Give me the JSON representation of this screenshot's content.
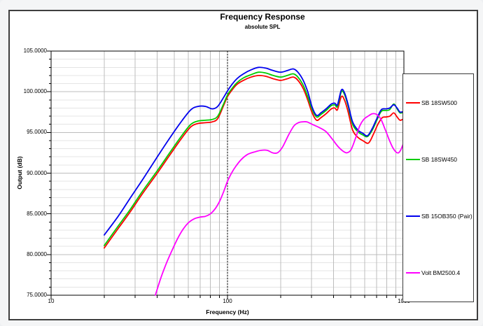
{
  "chart_data": {
    "type": "line",
    "title": "Frequency Response",
    "subtitle": "absolute SPL",
    "xlabel": "Frequency (Hz)",
    "ylabel": "Output (dB)",
    "x_scale": "log",
    "xlim": [
      10,
      1000
    ],
    "ylim": [
      75,
      105
    ],
    "x_ticks": [
      "10",
      "100",
      "1000"
    ],
    "y_ticks": [
      "105.0000",
      "100.0000",
      "95.0000",
      "90.0000",
      "85.0000",
      "80.0000",
      "75.0000"
    ],
    "y_tick_values": [
      105,
      100,
      95,
      90,
      85,
      80,
      75
    ],
    "grid": true,
    "grid_minor_color": "#e4e4e4",
    "grid_major_color": "#bcbcbc",
    "cursor_line_hz": 100,
    "cursor_line_color": "#000000",
    "legend_position": "right",
    "series": [
      {
        "name": "SB 18SW500",
        "color": "#ff0000",
        "points": [
          [
            20,
            80.8
          ],
          [
            24,
            83.2
          ],
          [
            28,
            85.2
          ],
          [
            33,
            87.5
          ],
          [
            40,
            90.0
          ],
          [
            47,
            92.2
          ],
          [
            55,
            94.3
          ],
          [
            62,
            95.7
          ],
          [
            68,
            96.1
          ],
          [
            75,
            96.2
          ],
          [
            82,
            96.3
          ],
          [
            88,
            96.7
          ],
          [
            95,
            98.3
          ],
          [
            100,
            99.4
          ],
          [
            106,
            100.2
          ],
          [
            113,
            100.9
          ],
          [
            123,
            101.4
          ],
          [
            136,
            101.8
          ],
          [
            150,
            102.0
          ],
          [
            165,
            101.9
          ],
          [
            182,
            101.6
          ],
          [
            200,
            101.4
          ],
          [
            218,
            101.6
          ],
          [
            237,
            101.8
          ],
          [
            253,
            101.3
          ],
          [
            270,
            100.3
          ],
          [
            286,
            98.9
          ],
          [
            302,
            97.4
          ],
          [
            320,
            96.5
          ],
          [
            338,
            96.8
          ],
          [
            362,
            97.3
          ],
          [
            388,
            97.9
          ],
          [
            406,
            98.0
          ],
          [
            420,
            97.8
          ],
          [
            442,
            99.4
          ],
          [
            460,
            99.0
          ],
          [
            482,
            97.6
          ],
          [
            512,
            95.3
          ],
          [
            548,
            94.4
          ],
          [
            585,
            94.0
          ],
          [
            630,
            93.7
          ],
          [
            672,
            94.8
          ],
          [
            712,
            96.0
          ],
          [
            752,
            96.8
          ],
          [
            792,
            96.9
          ],
          [
            832,
            97.0
          ],
          [
            876,
            97.4
          ],
          [
            915,
            96.9
          ],
          [
            952,
            96.5
          ],
          [
            1000,
            96.7
          ]
        ]
      },
      {
        "name": "SB 18SW450",
        "color": "#00cc00",
        "points": [
          [
            20,
            81.1
          ],
          [
            24,
            83.5
          ],
          [
            28,
            85.5
          ],
          [
            33,
            87.8
          ],
          [
            40,
            90.3
          ],
          [
            47,
            92.5
          ],
          [
            55,
            94.6
          ],
          [
            62,
            96.0
          ],
          [
            68,
            96.4
          ],
          [
            75,
            96.5
          ],
          [
            82,
            96.6
          ],
          [
            88,
            97.0
          ],
          [
            95,
            98.5
          ],
          [
            100,
            99.6
          ],
          [
            106,
            100.4
          ],
          [
            113,
            101.1
          ],
          [
            123,
            101.7
          ],
          [
            136,
            102.1
          ],
          [
            150,
            102.4
          ],
          [
            165,
            102.3
          ],
          [
            182,
            102.0
          ],
          [
            200,
            101.8
          ],
          [
            218,
            102.0
          ],
          [
            237,
            102.2
          ],
          [
            253,
            101.7
          ],
          [
            270,
            100.7
          ],
          [
            286,
            99.3
          ],
          [
            302,
            97.8
          ],
          [
            320,
            96.9
          ],
          [
            338,
            97.2
          ],
          [
            362,
            97.7
          ],
          [
            388,
            98.3
          ],
          [
            406,
            98.4
          ],
          [
            420,
            98.2
          ],
          [
            442,
            100.0
          ],
          [
            460,
            99.7
          ],
          [
            482,
            98.3
          ],
          [
            512,
            96.0
          ],
          [
            548,
            95.1
          ],
          [
            585,
            94.7
          ],
          [
            622,
            94.5
          ],
          [
            662,
            95.3
          ],
          [
            702,
            96.5
          ],
          [
            745,
            97.6
          ],
          [
            790,
            97.7
          ],
          [
            830,
            97.8
          ],
          [
            876,
            98.5
          ],
          [
            915,
            97.9
          ],
          [
            952,
            97.4
          ],
          [
            1000,
            97.5
          ]
        ]
      },
      {
        "name": "SB 15OB350 (Pair)",
        "color": "#0000ee",
        "points": [
          [
            20,
            82.4
          ],
          [
            24,
            84.7
          ],
          [
            28,
            86.9
          ],
          [
            33,
            89.2
          ],
          [
            40,
            92.0
          ],
          [
            47,
            94.3
          ],
          [
            55,
            96.4
          ],
          [
            62,
            97.8
          ],
          [
            68,
            98.2
          ],
          [
            75,
            98.2
          ],
          [
            82,
            97.9
          ],
          [
            88,
            98.2
          ],
          [
            95,
            99.3
          ],
          [
            100,
            100.1
          ],
          [
            106,
            100.9
          ],
          [
            113,
            101.6
          ],
          [
            123,
            102.2
          ],
          [
            136,
            102.7
          ],
          [
            150,
            103.0
          ],
          [
            165,
            102.9
          ],
          [
            182,
            102.6
          ],
          [
            200,
            102.4
          ],
          [
            218,
            102.6
          ],
          [
            237,
            102.8
          ],
          [
            253,
            102.3
          ],
          [
            270,
            101.3
          ],
          [
            286,
            99.9
          ],
          [
            302,
            98.1
          ],
          [
            320,
            97.1
          ],
          [
            338,
            97.4
          ],
          [
            362,
            97.9
          ],
          [
            388,
            98.5
          ],
          [
            406,
            98.6
          ],
          [
            420,
            98.4
          ],
          [
            442,
            100.2
          ],
          [
            460,
            99.9
          ],
          [
            482,
            98.5
          ],
          [
            512,
            96.3
          ],
          [
            548,
            95.3
          ],
          [
            585,
            94.9
          ],
          [
            622,
            94.6
          ],
          [
            662,
            95.5
          ],
          [
            702,
            96.7
          ],
          [
            745,
            97.8
          ],
          [
            790,
            97.9
          ],
          [
            830,
            98.0
          ],
          [
            876,
            98.4
          ],
          [
            915,
            98.0
          ],
          [
            952,
            97.5
          ],
          [
            1000,
            97.6
          ]
        ]
      },
      {
        "name": "Volt BM2500.4",
        "color": "#ff00ff",
        "points": [
          [
            39,
            75.0
          ],
          [
            42,
            77.2
          ],
          [
            45,
            78.9
          ],
          [
            48,
            80.3
          ],
          [
            52,
            81.9
          ],
          [
            56,
            83.1
          ],
          [
            60,
            83.9
          ],
          [
            65,
            84.4
          ],
          [
            70,
            84.6
          ],
          [
            75,
            84.7
          ],
          [
            80,
            85.0
          ],
          [
            85,
            85.6
          ],
          [
            90,
            86.5
          ],
          [
            95,
            87.7
          ],
          [
            100,
            89.0
          ],
          [
            106,
            90.1
          ],
          [
            112,
            90.9
          ],
          [
            120,
            91.7
          ],
          [
            130,
            92.3
          ],
          [
            142,
            92.6
          ],
          [
            155,
            92.8
          ],
          [
            168,
            92.8
          ],
          [
            180,
            92.5
          ],
          [
            192,
            92.5
          ],
          [
            205,
            93.2
          ],
          [
            222,
            94.7
          ],
          [
            238,
            95.8
          ],
          [
            252,
            96.2
          ],
          [
            266,
            96.3
          ],
          [
            282,
            96.3
          ],
          [
            302,
            96.0
          ],
          [
            332,
            95.6
          ],
          [
            362,
            95.1
          ],
          [
            392,
            94.2
          ],
          [
            422,
            93.3
          ],
          [
            452,
            92.7
          ],
          [
            476,
            92.5
          ],
          [
            502,
            92.9
          ],
          [
            532,
            94.3
          ],
          [
            562,
            95.8
          ],
          [
            592,
            96.6
          ],
          [
            626,
            97.0
          ],
          [
            662,
            97.3
          ],
          [
            702,
            97.2
          ],
          [
            742,
            96.6
          ],
          [
            782,
            95.4
          ],
          [
            822,
            94.2
          ],
          [
            862,
            93.2
          ],
          [
            902,
            92.6
          ],
          [
            932,
            92.5
          ],
          [
            962,
            92.9
          ],
          [
            1000,
            93.8
          ]
        ]
      }
    ]
  }
}
